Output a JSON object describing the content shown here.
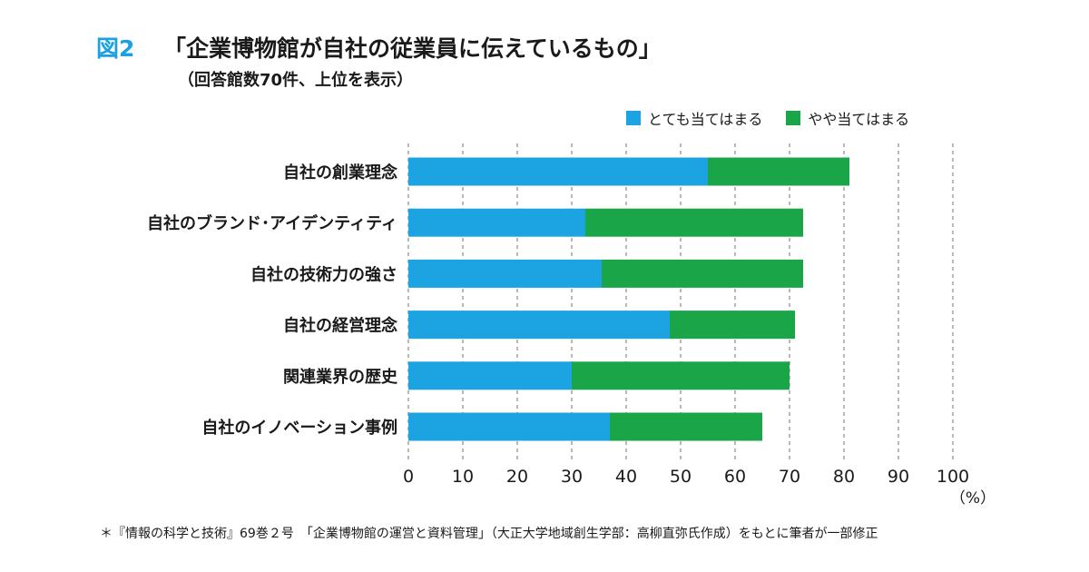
{
  "header": {
    "figure_label": "図2",
    "title": "「企業博物館が自社の従業員に伝えているもの」",
    "subtitle": "（回答館数70件、上位を表示）"
  },
  "footnote": "＊『情報の科学と技術』69巻２号　「企業博物館の運営と資料管理」（大正大学地域創生学部：高柳直弥氏作成）をもとに筆者が一部修正",
  "chart_data": {
    "type": "bar",
    "orientation": "horizontal",
    "stacked": true,
    "categories": [
      "自社の創業理念",
      "自社のブランド･アイデンティティ",
      "自社の技術力の強さ",
      "自社の経営理念",
      "関連業界の歴史",
      "自社のイノベーション事例"
    ],
    "series": [
      {
        "name": "とても当てはまる",
        "color": "#1ca3e2",
        "values": [
          55,
          32.5,
          35.5,
          48,
          30,
          37
        ]
      },
      {
        "name": "やや当てはまる",
        "color": "#1aa548",
        "values": [
          26,
          40,
          37,
          23,
          40,
          28
        ]
      }
    ],
    "xlim": [
      0,
      100
    ],
    "xticks": [
      0,
      10,
      20,
      30,
      40,
      50,
      60,
      70,
      80,
      90,
      100
    ],
    "x_unit": "（%）",
    "grid": "vertical-dashed",
    "legend_position": "top-right"
  }
}
